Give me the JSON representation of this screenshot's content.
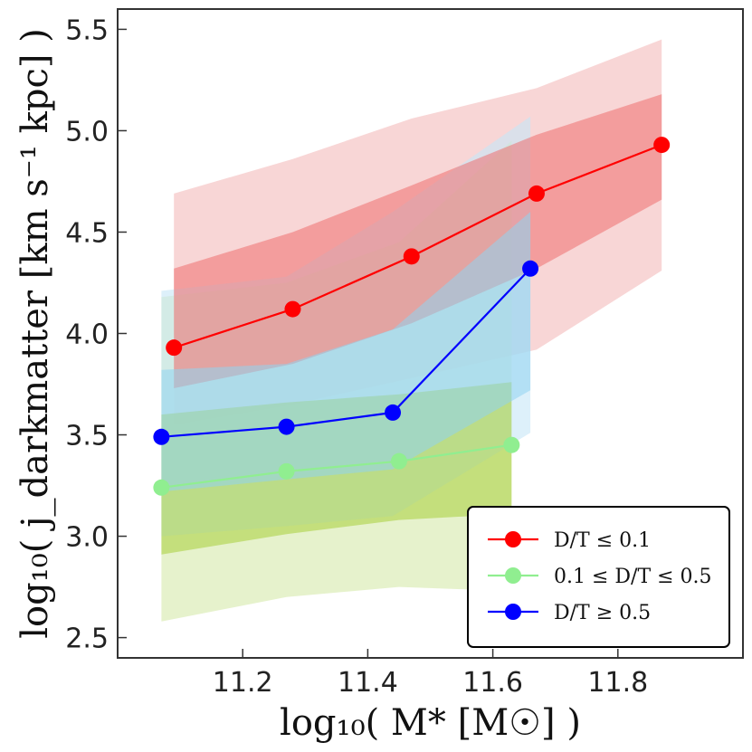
{
  "chart_data": {
    "type": "line",
    "xlabel": "log₁₀( M* [M☉] )",
    "ylabel": "log₁₀( j_darkmatter [km s⁻¹ kpc] )",
    "xlim": [
      11.0,
      12.0
    ],
    "ylim": [
      2.4,
      5.6
    ],
    "xticks": [
      11.2,
      11.4,
      11.6,
      11.8
    ],
    "xtick_labels": [
      "11.2",
      "11.4",
      "11.6",
      "11.8"
    ],
    "yticks": [
      2.5,
      3.0,
      3.5,
      4.0,
      4.5,
      5.0,
      5.5
    ],
    "ytick_labels": [
      "2.5",
      "3.0",
      "3.5",
      "4.0",
      "4.5",
      "5.0",
      "5.5"
    ],
    "grid": false,
    "legend_position": "bottom-right",
    "series": [
      {
        "name": "D/T ≤ 0.1",
        "color": "#ff0000",
        "band_inner_color": "#ee6f6f",
        "band_outer_color": "#f4baba",
        "x": [
          11.09,
          11.28,
          11.47,
          11.67,
          11.87
        ],
        "y": [
          3.93,
          4.12,
          4.38,
          4.69,
          4.93
        ],
        "band_inner_lower": [
          3.73,
          3.85,
          4.05,
          4.32,
          4.66
        ],
        "band_inner_upper": [
          4.32,
          4.5,
          4.73,
          4.98,
          5.18
        ],
        "band_outer_lower": [
          3.55,
          3.65,
          3.78,
          3.92,
          4.31
        ],
        "band_outer_upper": [
          4.69,
          4.86,
          5.06,
          5.21,
          5.45
        ]
      },
      {
        "name": "0.1 ≤ D/T ≤ 0.5",
        "color": "#90ee90",
        "band_inner_color": "#a8cf3b",
        "band_outer_color": "#d6eaaa",
        "x": [
          11.07,
          11.27,
          11.45,
          11.63
        ],
        "y": [
          3.24,
          3.32,
          3.37,
          3.45
        ],
        "band_inner_lower": [
          2.91,
          3.01,
          3.08,
          3.11
        ],
        "band_inner_upper": [
          3.6,
          3.66,
          3.7,
          3.76
        ],
        "band_outer_lower": [
          2.58,
          2.7,
          2.75,
          2.73
        ],
        "band_outer_upper": [
          4.18,
          4.25,
          4.45,
          4.95
        ]
      },
      {
        "name": "D/T ≥ 0.5",
        "color": "#0000ff",
        "band_inner_color": "#8fd3f0",
        "band_outer_color": "#c7e6f7",
        "x": [
          11.07,
          11.27,
          11.44,
          11.66
        ],
        "y": [
          3.49,
          3.54,
          3.61,
          4.32
        ],
        "band_inner_lower": [
          3.22,
          3.28,
          3.33,
          3.72
        ],
        "band_inner_upper": [
          3.82,
          3.85,
          4.02,
          4.6
        ],
        "band_outer_lower": [
          3.0,
          3.05,
          3.1,
          3.51
        ],
        "band_outer_upper": [
          4.21,
          4.28,
          4.6,
          5.07
        ]
      }
    ]
  }
}
